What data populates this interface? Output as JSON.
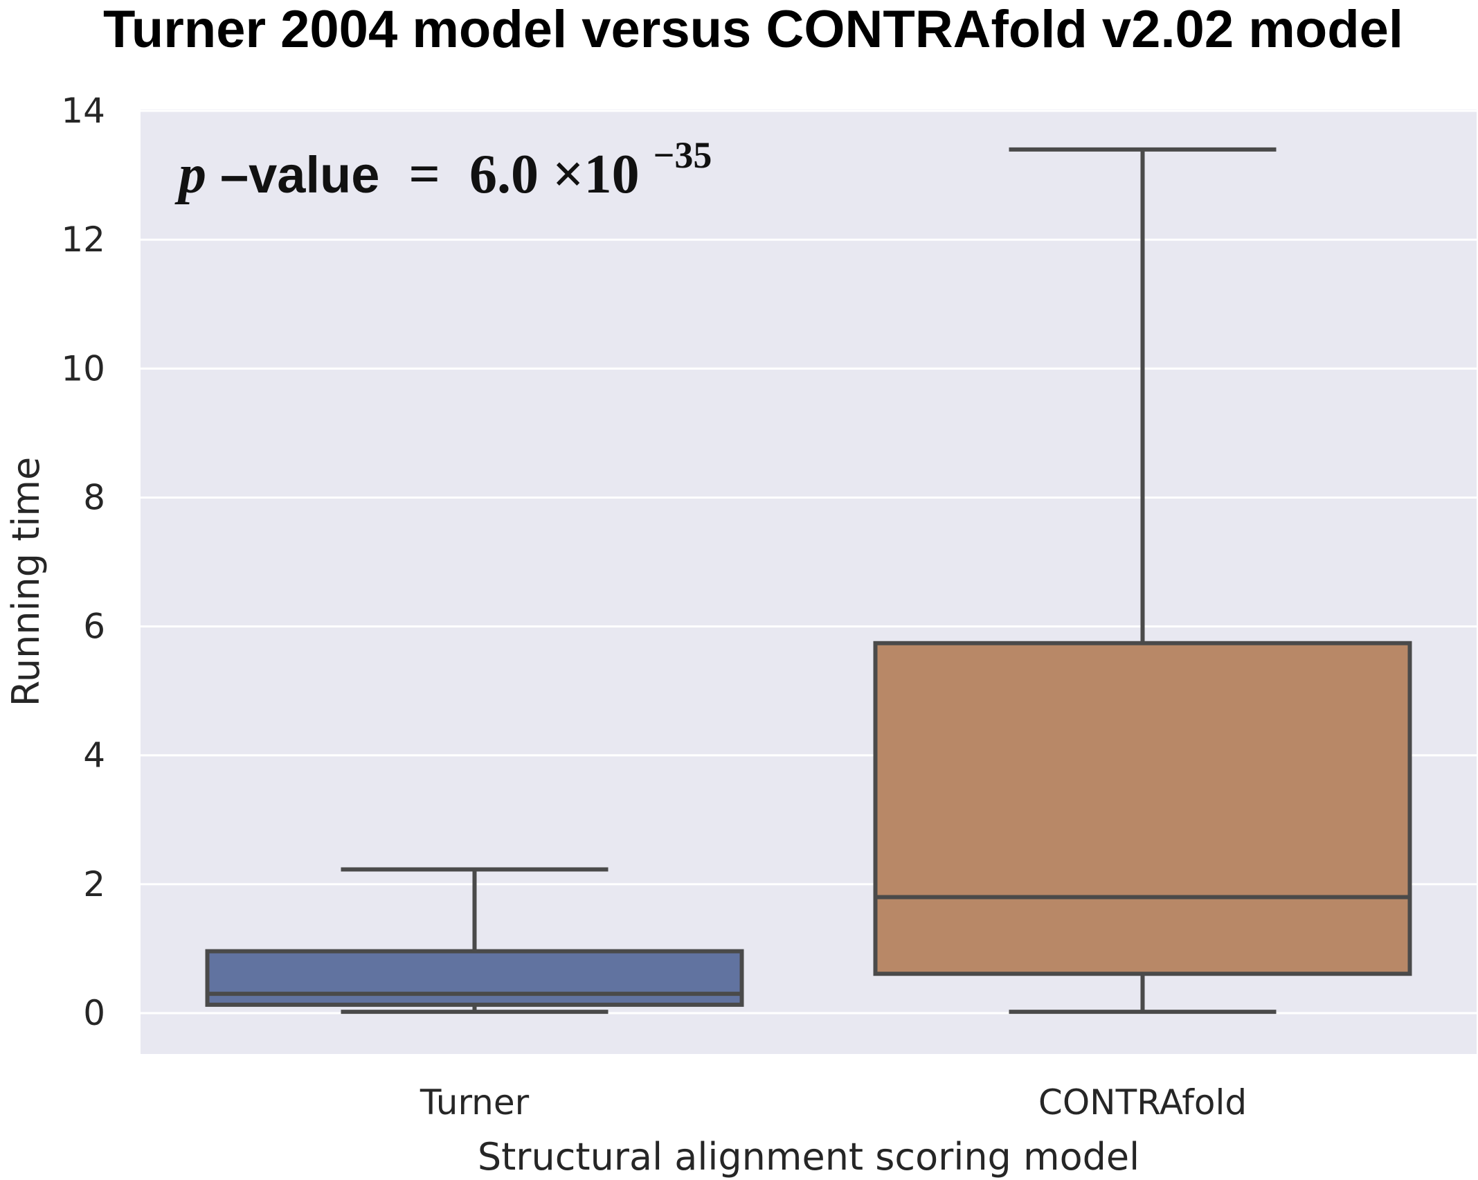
{
  "chart_data": {
    "type": "box",
    "title": "Turner 2004 model versus CONTRAfold v2.02 model",
    "xlabel": "Structural alignment scoring model",
    "ylabel": "Running time",
    "ylim": [
      -0.6,
      14.1
    ],
    "yticks": [
      0,
      2,
      4,
      6,
      8,
      10,
      12,
      14
    ],
    "grid": true,
    "annotation": {
      "p_symbol": "p",
      "label": "–value",
      "equals": "=",
      "mantissa": "6.0",
      "times": "×10",
      "exponent": "−35"
    },
    "categories": [
      "Turner",
      "CONTRAfold"
    ],
    "boxes": [
      {
        "name": "Turner",
        "whisker_low": 0.02,
        "q1": 0.13,
        "median": 0.3,
        "q3": 0.96,
        "whisker_high": 2.23,
        "color": "#6173a0"
      },
      {
        "name": "CONTRAfold",
        "whisker_low": 0.02,
        "q1": 0.61,
        "median": 1.8,
        "q3": 5.74,
        "whisker_high": 13.4,
        "color": "#b88867"
      }
    ]
  },
  "colors": {
    "plot_background": "#e8e8f1",
    "grid": "#ffffff",
    "box_edge": "#4a4a4a"
  }
}
